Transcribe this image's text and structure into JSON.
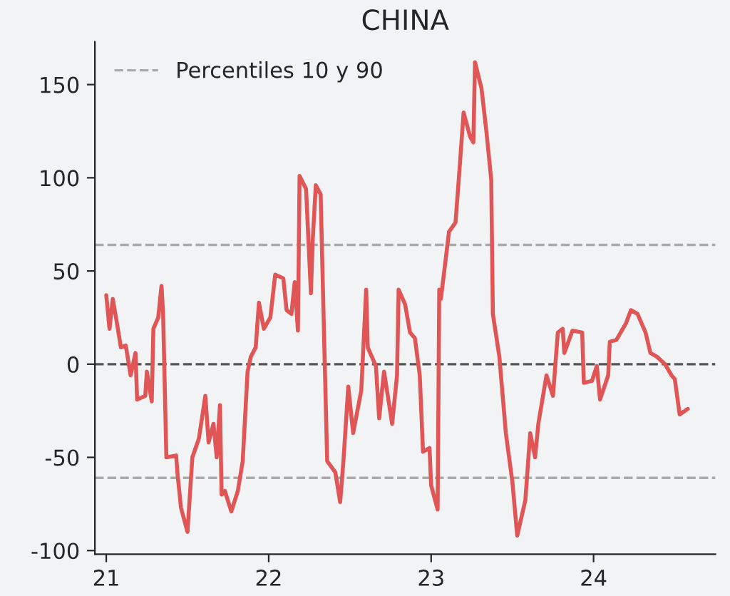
{
  "chart_data": {
    "type": "line",
    "title": "CHINA",
    "x": [
      21.0,
      21.02,
      21.04,
      21.06,
      21.09,
      21.12,
      21.15,
      21.18,
      21.19,
      21.24,
      21.25,
      21.28,
      21.29,
      21.32,
      21.34,
      21.35,
      21.37,
      21.43,
      21.44,
      21.46,
      21.5,
      21.53,
      21.57,
      21.61,
      21.63,
      21.66,
      21.68,
      21.7,
      21.71,
      21.73,
      21.77,
      21.81,
      21.84,
      21.87,
      21.89,
      21.92,
      21.94,
      21.97,
      22.01,
      22.04,
      22.09,
      22.11,
      22.14,
      22.16,
      22.18,
      22.19,
      22.23,
      22.26,
      22.27,
      22.29,
      22.32,
      22.33,
      22.36,
      22.41,
      22.44,
      22.46,
      22.49,
      22.52,
      22.57,
      22.6,
      22.61,
      22.66,
      22.68,
      22.71,
      22.76,
      22.79,
      22.8,
      22.84,
      22.87,
      22.9,
      22.93,
      22.95,
      22.99,
      23.0,
      23.04,
      23.05,
      23.06,
      23.11,
      23.15,
      23.17,
      23.2,
      23.24,
      23.26,
      23.27,
      23.31,
      23.34,
      23.37,
      23.38,
      23.42,
      23.46,
      23.5,
      23.53,
      23.58,
      23.61,
      23.64,
      23.66,
      23.71,
      23.75,
      23.78,
      23.81,
      23.82,
      23.87,
      23.93,
      23.94,
      23.99,
      24.02,
      24.04,
      24.09,
      24.1,
      24.14,
      24.2,
      24.23,
      24.27,
      24.32,
      24.35,
      24.39,
      24.44,
      24.48,
      24.5,
      24.53,
      24.58
    ],
    "series": [
      {
        "color": "#e05555",
        "values": [
          37,
          19,
          35,
          25,
          9,
          10,
          -6,
          6,
          -19,
          -17,
          -4,
          -20,
          19,
          25,
          42,
          27,
          -50,
          -49,
          -60,
          -77,
          -90,
          -50,
          -40,
          -17,
          -42,
          -32,
          -50,
          -22,
          -70,
          -68,
          -79,
          -68,
          -52,
          -4,
          4,
          9,
          33,
          19,
          25,
          48,
          46,
          29,
          27,
          44,
          18,
          101,
          94,
          38,
          65,
          96,
          91,
          54,
          -52,
          -58,
          -74,
          -52,
          -12,
          -37,
          -14,
          40,
          9,
          -1,
          -29,
          -4,
          -32,
          -6,
          40,
          32,
          17,
          14,
          -6,
          -47,
          -45,
          -65,
          -78,
          40,
          35,
          71,
          76,
          99,
          135,
          122,
          119,
          162,
          148,
          125,
          99,
          27,
          4,
          -37,
          -63,
          -92,
          -73,
          -37,
          -50,
          -32,
          -6,
          -17,
          17,
          19,
          6,
          18,
          17,
          -10,
          -9,
          -1,
          -19,
          -6,
          12,
          13,
          22,
          29,
          27,
          17,
          6,
          4,
          0,
          -6,
          -8,
          -27,
          -24
        ]
      }
    ],
    "xlim": [
      20.93,
      24.75
    ],
    "xticks": [
      {
        "value": 21,
        "label": "21"
      },
      {
        "value": 22,
        "label": "22"
      },
      {
        "value": 23,
        "label": "23"
      },
      {
        "value": 24,
        "label": "24"
      }
    ],
    "ylim": [
      -102,
      173
    ],
    "yticks": [
      -100,
      -50,
      0,
      50,
      100,
      150
    ],
    "ref_lines": [
      {
        "axis": "y",
        "value": 64,
        "label": "Percentiles 10 y 90",
        "color": "#aaaaaa",
        "line_style": "dashed"
      },
      {
        "axis": "y",
        "value": -61,
        "color": "#aaaaaa",
        "line_style": "dashed"
      },
      {
        "axis": "y",
        "value": 0,
        "color": "#555555",
        "line_style": "dashed"
      }
    ],
    "legend": "top left",
    "grid": false,
    "line_style": "solid",
    "marker": "none"
  }
}
